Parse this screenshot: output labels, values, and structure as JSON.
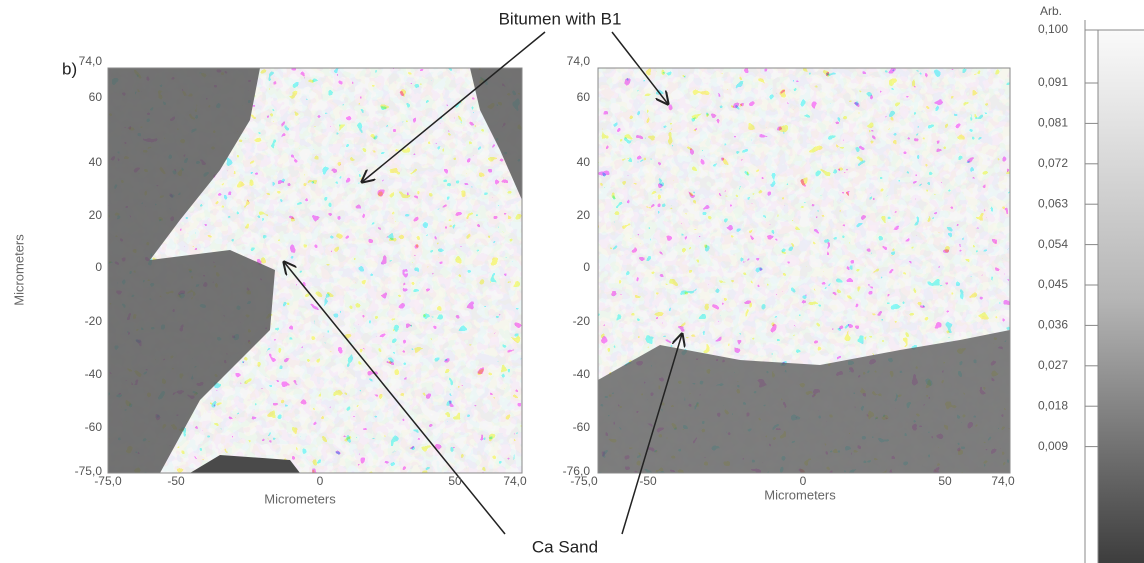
{
  "panel_label": "b)",
  "annotations": {
    "top": "Bitumen with B1",
    "bottom": "Ca Sand"
  },
  "maps": [
    {
      "ylabel": "Micrometers",
      "xlabel": "Micrometers",
      "yticks": [
        "74,0",
        "60",
        "40",
        "20",
        "0",
        "-20",
        "-40",
        "-60",
        "-75,0"
      ],
      "xticks": [
        "-75,0",
        "-50",
        "0",
        "50",
        "74,0"
      ]
    },
    {
      "xlabel": "Micrometers",
      "yticks": [
        "74,0",
        "60",
        "40",
        "20",
        "0",
        "-20",
        "-40",
        "-60",
        "-76,0"
      ],
      "xticks": [
        "-75,0",
        "-50",
        "0",
        "50",
        "74,0"
      ]
    }
  ],
  "colorbar": {
    "unit": "Arb.",
    "ticks": [
      "0,100",
      "0,091",
      "0,081",
      "0,072",
      "0,063",
      "0,054",
      "0,045",
      "0,036",
      "0,027",
      "0,018",
      "0,009"
    ]
  }
}
